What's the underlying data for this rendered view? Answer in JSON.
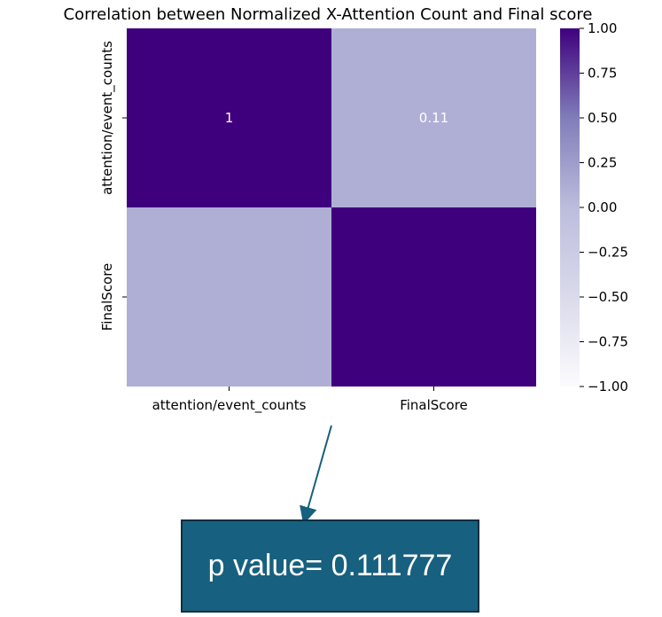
{
  "chart_data": {
    "type": "heatmap",
    "title": "Correlation between Normalized X-Attention Count and Final score",
    "row_labels": [
      "attention/event_counts",
      "FinalScore"
    ],
    "col_labels": [
      "attention/event_counts",
      "FinalScore"
    ],
    "values": [
      [
        1,
        0.11
      ],
      [
        0.11,
        1
      ]
    ],
    "annotations": [
      [
        "1",
        "0.11"
      ],
      [
        "",
        ""
      ]
    ],
    "colormap": "Purples",
    "vmin": -1.0,
    "vmax": 1.0,
    "colorbar_ticks": [
      "1.00",
      "0.75",
      "0.50",
      "0.25",
      "0.00",
      "−0.25",
      "−0.50",
      "−0.75",
      "−1.00"
    ],
    "colorbar_values": [
      1.0,
      0.75,
      0.5,
      0.25,
      0.0,
      -0.25,
      -0.5,
      -0.75,
      -1.0
    ]
  },
  "callout": {
    "text": "p value= 0.111777",
    "color": "#17607f"
  }
}
